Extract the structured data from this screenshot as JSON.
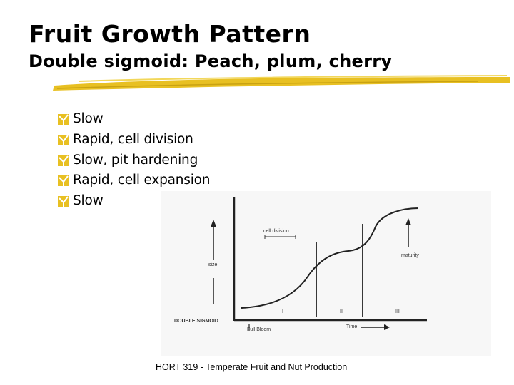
{
  "slide": {
    "title": "Fruit Growth Pattern",
    "subtitle": "Double sigmoid: Peach, plum, cherry",
    "accent_color": "#e8c022",
    "bullet_icon": "y-checkbox-icon",
    "bullets": [
      "Slow",
      "Rapid, cell division",
      "Slow, pit hardening",
      "Rapid, cell expansion",
      "Slow"
    ],
    "footer": "HORT 319 - Temperate Fruit and Nut Production"
  },
  "figure": {
    "label_size": "size",
    "label_cell_division": "cell division",
    "label_maturity": "maturity",
    "label_double_sigmoid": "DOUBLE SIGMOID",
    "label_full_bloom": "Full Bloom",
    "label_time": "Time",
    "stage_labels": [
      "I",
      "II",
      "III"
    ]
  }
}
